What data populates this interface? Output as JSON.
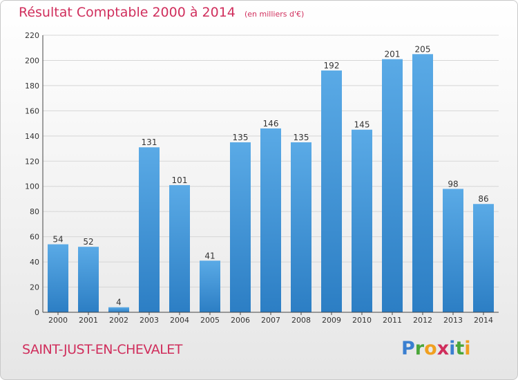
{
  "header": {
    "title": "Résultat Comptable 2000 à 2014",
    "subtitle": "(en milliers d'€)"
  },
  "footer": {
    "place": "SAINT-JUST-EN-CHEVALET",
    "logo_text": "Proxiti"
  },
  "colors": {
    "title": "#d02e5c",
    "bar_light": "#5aaae6",
    "bar_dark": "#2c7ec4",
    "grid": "#d6d6d6",
    "axis_text": "#333333"
  },
  "chart_data": {
    "type": "bar",
    "title": "Résultat Comptable 2000 à 2014",
    "subtitle": "(en milliers d'€)",
    "xlabel": "",
    "ylabel": "",
    "categories": [
      "2000",
      "2001",
      "2002",
      "2003",
      "2004",
      "2005",
      "2006",
      "2007",
      "2008",
      "2009",
      "2010",
      "2011",
      "2012",
      "2013",
      "2014"
    ],
    "values": [
      54,
      52,
      4,
      131,
      101,
      41,
      135,
      146,
      135,
      192,
      145,
      201,
      205,
      98,
      86
    ],
    "ylim": [
      0,
      220
    ],
    "yticks": [
      0,
      20,
      40,
      60,
      80,
      100,
      120,
      140,
      160,
      180,
      200,
      220
    ],
    "grid": true,
    "data_labels": true
  }
}
